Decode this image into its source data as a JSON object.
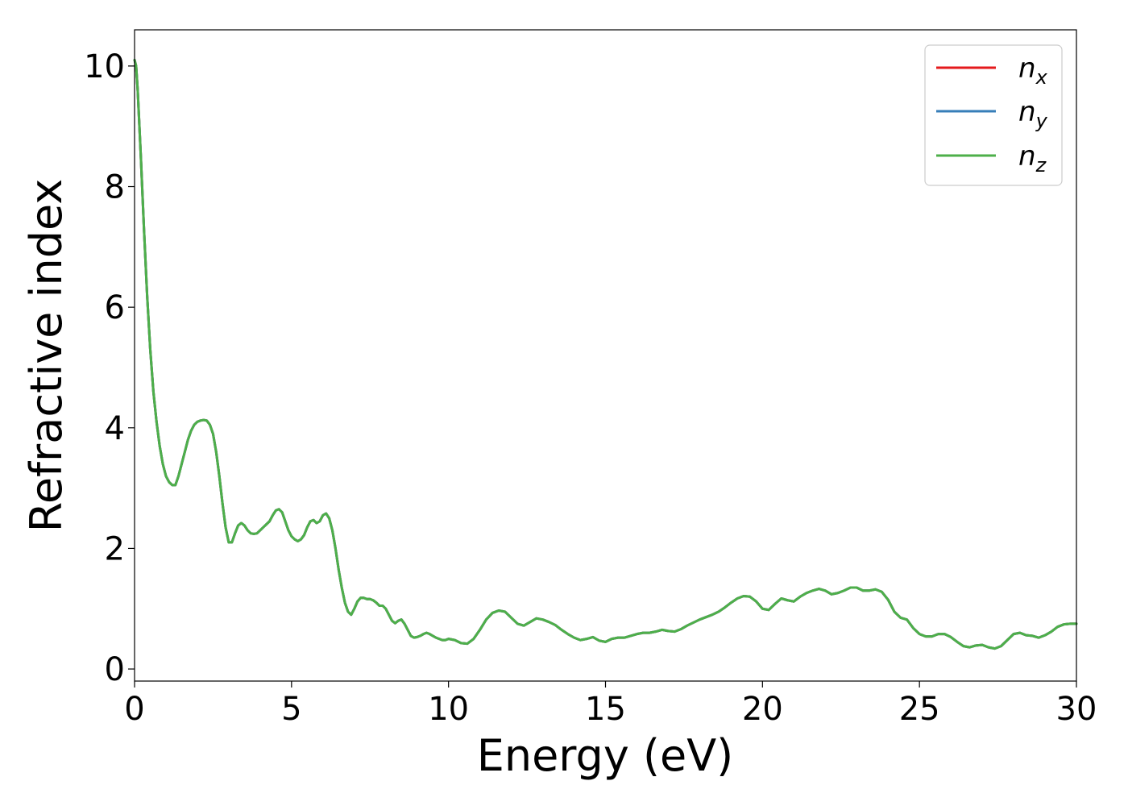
{
  "chart_data": {
    "type": "line",
    "title": "",
    "xlabel": "Energy (eV)",
    "ylabel": "Refractive index",
    "xlim": [
      0,
      30
    ],
    "ylim": [
      -0.2,
      10.6
    ],
    "xticks": [
      0,
      5,
      10,
      15,
      20,
      25,
      30
    ],
    "yticks": [
      0,
      2,
      4,
      6,
      8,
      10
    ],
    "grid": false,
    "legend_position": "top-right",
    "legend": [
      {
        "main": "n",
        "sub": "x",
        "color": "#e41a1c"
      },
      {
        "main": "n",
        "sub": "y",
        "color": "#377eb8"
      },
      {
        "main": "n",
        "sub": "z",
        "color": "#4daf4a"
      }
    ],
    "x": [
      0.0,
      0.05,
      0.1,
      0.2,
      0.3,
      0.4,
      0.5,
      0.6,
      0.7,
      0.8,
      0.9,
      1.0,
      1.1,
      1.2,
      1.3,
      1.4,
      1.5,
      1.6,
      1.7,
      1.8,
      1.9,
      2.0,
      2.1,
      2.2,
      2.3,
      2.4,
      2.5,
      2.6,
      2.7,
      2.8,
      2.9,
      3.0,
      3.1,
      3.2,
      3.3,
      3.4,
      3.5,
      3.6,
      3.7,
      3.8,
      3.9,
      4.0,
      4.1,
      4.2,
      4.3,
      4.4,
      4.5,
      4.6,
      4.7,
      4.8,
      4.9,
      5.0,
      5.1,
      5.2,
      5.3,
      5.4,
      5.5,
      5.6,
      5.7,
      5.8,
      5.9,
      6.0,
      6.1,
      6.2,
      6.3,
      6.4,
      6.5,
      6.6,
      6.7,
      6.8,
      6.9,
      7.0,
      7.1,
      7.2,
      7.3,
      7.4,
      7.5,
      7.6,
      7.7,
      7.8,
      7.9,
      8.0,
      8.1,
      8.2,
      8.3,
      8.4,
      8.5,
      8.6,
      8.7,
      8.8,
      8.9,
      9.0,
      9.1,
      9.2,
      9.3,
      9.4,
      9.5,
      9.6,
      9.7,
      9.8,
      9.9,
      10.0,
      10.2,
      10.4,
      10.6,
      10.8,
      11.0,
      11.2,
      11.4,
      11.6,
      11.8,
      12.0,
      12.2,
      12.4,
      12.6,
      12.8,
      13.0,
      13.2,
      13.4,
      13.6,
      13.8,
      14.0,
      14.2,
      14.4,
      14.6,
      14.8,
      15.0,
      15.2,
      15.4,
      15.6,
      15.8,
      16.0,
      16.2,
      16.4,
      16.6,
      16.8,
      17.0,
      17.2,
      17.4,
      17.6,
      17.8,
      18.0,
      18.2,
      18.4,
      18.6,
      18.8,
      19.0,
      19.2,
      19.4,
      19.6,
      19.8,
      20.0,
      20.2,
      20.4,
      20.6,
      20.8,
      21.0,
      21.2,
      21.4,
      21.6,
      21.8,
      22.0,
      22.2,
      22.4,
      22.6,
      22.8,
      23.0,
      23.2,
      23.4,
      23.6,
      23.8,
      24.0,
      24.2,
      24.4,
      24.6,
      24.8,
      25.0,
      25.2,
      25.4,
      25.6,
      25.8,
      26.0,
      26.2,
      26.4,
      26.6,
      26.8,
      27.0,
      27.2,
      27.4,
      27.6,
      27.8,
      28.0,
      28.2,
      28.4,
      28.6,
      28.8,
      29.0,
      29.2,
      29.4,
      29.6,
      29.8,
      30.0
    ],
    "y": [
      10.1,
      10.0,
      9.6,
      8.5,
      7.3,
      6.2,
      5.3,
      4.6,
      4.1,
      3.7,
      3.4,
      3.2,
      3.1,
      3.05,
      3.05,
      3.2,
      3.4,
      3.6,
      3.8,
      3.95,
      4.05,
      4.1,
      4.12,
      4.13,
      4.12,
      4.05,
      3.9,
      3.6,
      3.2,
      2.75,
      2.35,
      2.1,
      2.1,
      2.25,
      2.38,
      2.42,
      2.38,
      2.3,
      2.25,
      2.24,
      2.25,
      2.3,
      2.35,
      2.4,
      2.45,
      2.55,
      2.63,
      2.65,
      2.6,
      2.45,
      2.3,
      2.2,
      2.15,
      2.12,
      2.15,
      2.22,
      2.35,
      2.45,
      2.47,
      2.42,
      2.45,
      2.55,
      2.58,
      2.5,
      2.3,
      2.0,
      1.65,
      1.35,
      1.1,
      0.95,
      0.9,
      1.0,
      1.12,
      1.18,
      1.18,
      1.16,
      1.16,
      1.14,
      1.1,
      1.05,
      1.05,
      1.0,
      0.9,
      0.8,
      0.76,
      0.8,
      0.82,
      0.75,
      0.65,
      0.55,
      0.52,
      0.53,
      0.55,
      0.58,
      0.6,
      0.58,
      0.55,
      0.52,
      0.5,
      0.48,
      0.48,
      0.5,
      0.48,
      0.43,
      0.42,
      0.5,
      0.65,
      0.82,
      0.93,
      0.97,
      0.95,
      0.85,
      0.75,
      0.72,
      0.78,
      0.84,
      0.82,
      0.78,
      0.73,
      0.65,
      0.58,
      0.52,
      0.48,
      0.5,
      0.53,
      0.47,
      0.45,
      0.5,
      0.52,
      0.52,
      0.55,
      0.58,
      0.6,
      0.6,
      0.62,
      0.65,
      0.63,
      0.62,
      0.66,
      0.72,
      0.77,
      0.82,
      0.86,
      0.9,
      0.95,
      1.02,
      1.1,
      1.17,
      1.21,
      1.2,
      1.12,
      1.0,
      0.98,
      1.08,
      1.17,
      1.14,
      1.12,
      1.2,
      1.26,
      1.3,
      1.33,
      1.3,
      1.24,
      1.26,
      1.3,
      1.35,
      1.35,
      1.3,
      1.3,
      1.32,
      1.28,
      1.15,
      0.95,
      0.85,
      0.82,
      0.68,
      0.58,
      0.54,
      0.54,
      0.58,
      0.58,
      0.53,
      0.45,
      0.38,
      0.36,
      0.39,
      0.4,
      0.36,
      0.34,
      0.38,
      0.48,
      0.58,
      0.6,
      0.56,
      0.55,
      0.52,
      0.56,
      0.62,
      0.7,
      0.74,
      0.75,
      0.75
    ],
    "series": [
      {
        "name": "n_x",
        "color": "#e41a1c",
        "ref": "y"
      },
      {
        "name": "n_y",
        "color": "#377eb8",
        "ref": "y"
      },
      {
        "name": "n_z",
        "color": "#4daf4a",
        "ref": "y"
      }
    ]
  }
}
